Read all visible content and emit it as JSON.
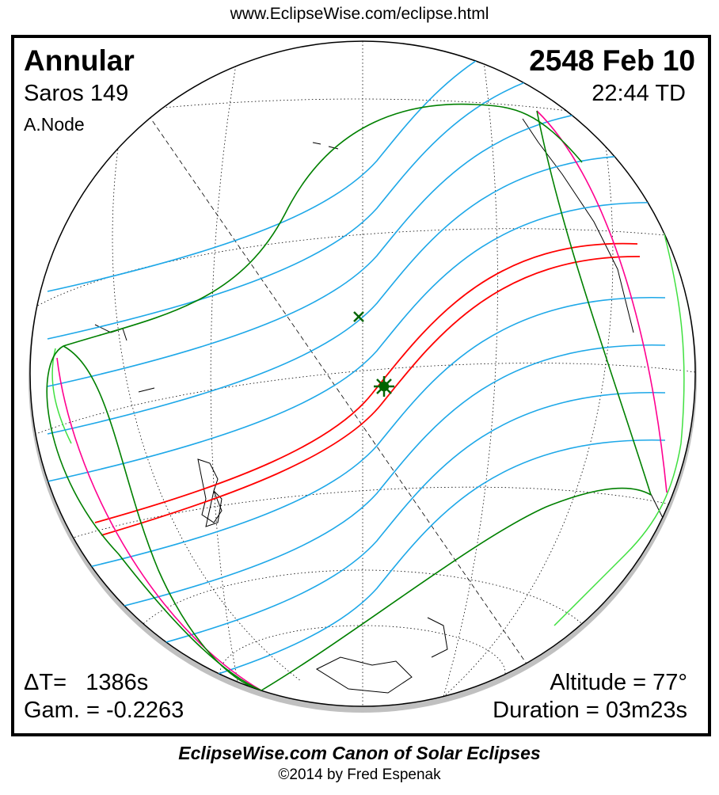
{
  "header": {
    "url": "www.EclipseWise.com/eclipse.html"
  },
  "eclipse": {
    "type": "Annular",
    "saros": "Saros 149",
    "node": "A.Node",
    "date": "2548 Feb 10",
    "time": "22:44 TD",
    "delta_t": "ΔT=   1386s",
    "gamma": "Gam. = -0.2263",
    "altitude": "Altitude = 77°",
    "duration": "Duration = 03m23s"
  },
  "footer": {
    "title": "EclipseWise.com Canon of Solar Eclipses",
    "copyright": "©2014 by Fred Espenak"
  },
  "colors": {
    "central_path": "#ff0000",
    "partial_lines": "#00a0e8",
    "limits": "#008000",
    "rise_set": "#ff0090",
    "coast_highlight": "#40e040"
  }
}
